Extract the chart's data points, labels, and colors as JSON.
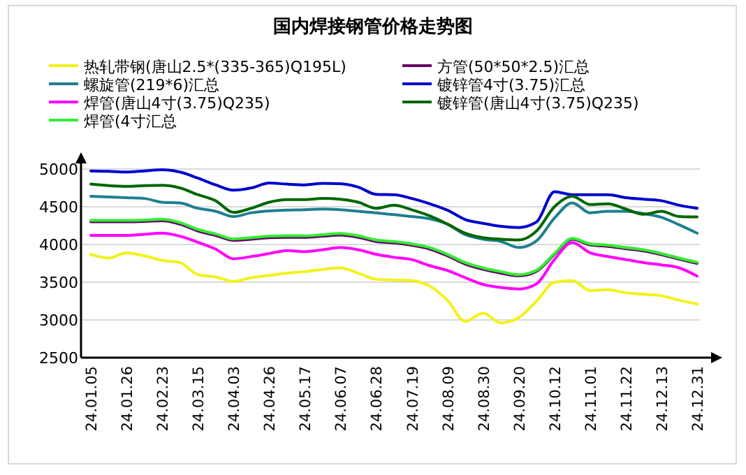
{
  "chart_data": {
    "type": "line",
    "title": "国内焊接钢管价格走势图",
    "categories": [
      "24.01.05",
      null,
      "24.01.26",
      null,
      "24.02.23",
      null,
      "24.03.15",
      null,
      "24.04.03",
      null,
      "24.04.26",
      null,
      "24.05.17",
      null,
      "24.06.07",
      null,
      "24.06.28",
      null,
      "24.07.19",
      null,
      "24.08.09",
      null,
      "24.08.30",
      null,
      "24.09.20",
      null,
      "24.10.12",
      null,
      "24.11.01",
      null,
      "24.11.22",
      null,
      "24.12.13",
      null,
      "24.12.31"
    ],
    "series": [
      {
        "name": "热轧带钢(唐山2.5*(335-365)Q195L)",
        "color": "#f2f21a",
        "values": [
          3870,
          3820,
          3890,
          3850,
          3790,
          3760,
          3600,
          3570,
          3510,
          3560,
          3590,
          3620,
          3640,
          3670,
          3690,
          3620,
          3540,
          3530,
          3520,
          3450,
          3260,
          2980,
          3090,
          2960,
          3030,
          3250,
          3500,
          3520,
          3390,
          3400,
          3360,
          3340,
          3320,
          3260,
          3210
        ]
      },
      {
        "name": "方管(50*50*2.5)汇总",
        "color": "#660066",
        "values": [
          4300,
          4300,
          4300,
          4305,
          4315,
          4270,
          4180,
          4120,
          4055,
          4070,
          4090,
          4095,
          4095,
          4110,
          4125,
          4095,
          4040,
          4020,
          3990,
          3940,
          3850,
          3740,
          3670,
          3620,
          3585,
          3645,
          3870,
          4070,
          3995,
          3975,
          3945,
          3915,
          3865,
          3805,
          3750
        ]
      },
      {
        "name": "螺旋管(219*6)汇总",
        "color": "#1f7f8f",
        "values": [
          4640,
          4630,
          4620,
          4610,
          4560,
          4550,
          4480,
          4440,
          4370,
          4420,
          4445,
          4455,
          4460,
          4470,
          4460,
          4440,
          4420,
          4395,
          4370,
          4340,
          4270,
          4130,
          4070,
          4040,
          3960,
          4050,
          4350,
          4550,
          4420,
          4440,
          4440,
          4410,
          4360,
          4260,
          4150
        ]
      },
      {
        "name": "镀锌管4寸(3.75)汇总",
        "color": "#0000cc",
        "values": [
          4975,
          4970,
          4960,
          4975,
          4990,
          4960,
          4880,
          4790,
          4720,
          4750,
          4815,
          4800,
          4790,
          4810,
          4805,
          4760,
          4665,
          4660,
          4610,
          4540,
          4455,
          4330,
          4280,
          4240,
          4225,
          4300,
          4700,
          4660,
          4660,
          4660,
          4620,
          4600,
          4580,
          4520,
          4480
        ]
      },
      {
        "name": "焊管(唐山4寸(3.75)Q235)",
        "color": "#ff00ff",
        "values": [
          4120,
          4120,
          4120,
          4135,
          4150,
          4110,
          4030,
          3940,
          3810,
          3840,
          3880,
          3920,
          3905,
          3930,
          3960,
          3930,
          3870,
          3830,
          3800,
          3720,
          3655,
          3560,
          3470,
          3430,
          3410,
          3480,
          3800,
          4025,
          3890,
          3840,
          3800,
          3760,
          3730,
          3690,
          3580
        ]
      },
      {
        "name": "镀锌管(唐山4寸(3.75)Q235)",
        "color": "#006600",
        "values": [
          4800,
          4780,
          4770,
          4780,
          4785,
          4750,
          4660,
          4580,
          4425,
          4480,
          4560,
          4595,
          4595,
          4610,
          4600,
          4560,
          4480,
          4520,
          4460,
          4380,
          4270,
          4150,
          4090,
          4070,
          4060,
          4180,
          4500,
          4640,
          4530,
          4540,
          4470,
          4400,
          4440,
          4370,
          4365
        ]
      },
      {
        "name": "焊管(4寸汇总",
        "color": "#33ee33",
        "values": [
          4320,
          4320,
          4320,
          4325,
          4335,
          4290,
          4200,
          4140,
          4075,
          4090,
          4110,
          4115,
          4115,
          4130,
          4145,
          4115,
          4060,
          4040,
          4010,
          3960,
          3870,
          3760,
          3690,
          3640,
          3600,
          3660,
          3880,
          4080,
          4010,
          3990,
          3960,
          3930,
          3880,
          3820,
          3765
        ]
      }
    ],
    "ylim": [
      2500,
      5000
    ],
    "yticks": [
      2500,
      3000,
      3500,
      4000,
      4500,
      5000
    ],
    "grid": "y",
    "legend": "top"
  }
}
